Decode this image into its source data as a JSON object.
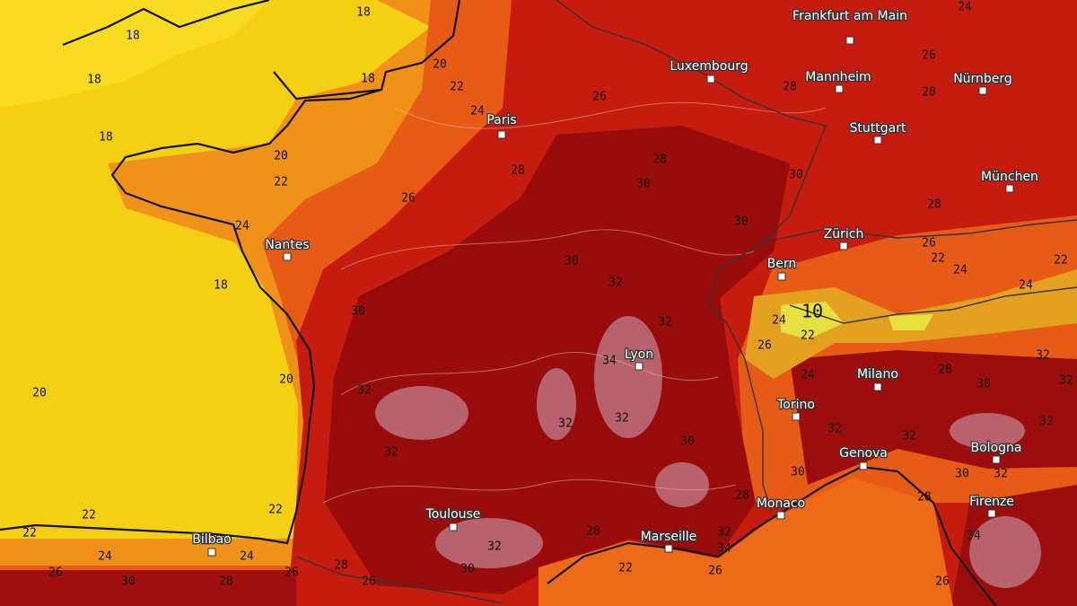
{
  "cities": [
    {
      "name": "Frankfurt am Main"
    },
    {
      "name": "Luxembourg"
    },
    {
      "name": "Mannheim"
    },
    {
      "name": "Nürnberg"
    },
    {
      "name": "Paris"
    },
    {
      "name": "Stuttgart"
    },
    {
      "name": "München"
    },
    {
      "name": "Nantes"
    },
    {
      "name": "Zürich"
    },
    {
      "name": "Bern"
    },
    {
      "name": "Lyon"
    },
    {
      "name": "Milano"
    },
    {
      "name": "Torino"
    },
    {
      "name": "Genova"
    },
    {
      "name": "Bologna"
    },
    {
      "name": "Monaco"
    },
    {
      "name": "Firenze"
    },
    {
      "name": "Toulouse"
    },
    {
      "name": "Marseille"
    },
    {
      "name": "Bilbao"
    }
  ],
  "contour_labels": [
    18,
    18,
    18,
    18,
    18,
    18,
    20,
    22,
    24,
    26,
    28,
    26,
    28,
    24,
    20,
    22,
    24,
    26,
    28,
    28,
    30,
    30,
    30,
    28,
    26,
    22,
    24,
    24,
    22,
    30,
    32,
    30,
    32,
    24,
    10,
    22,
    26,
    24,
    34,
    28,
    30,
    32,
    20,
    20,
    32,
    32,
    32,
    32,
    30,
    32,
    32,
    30,
    30,
    32,
    28,
    28,
    22,
    22,
    22,
    24,
    24,
    26,
    30,
    28,
    26,
    28,
    26,
    30,
    32,
    28,
    32,
    34,
    26,
    22,
    34,
    26,
    32,
    32
  ]
}
